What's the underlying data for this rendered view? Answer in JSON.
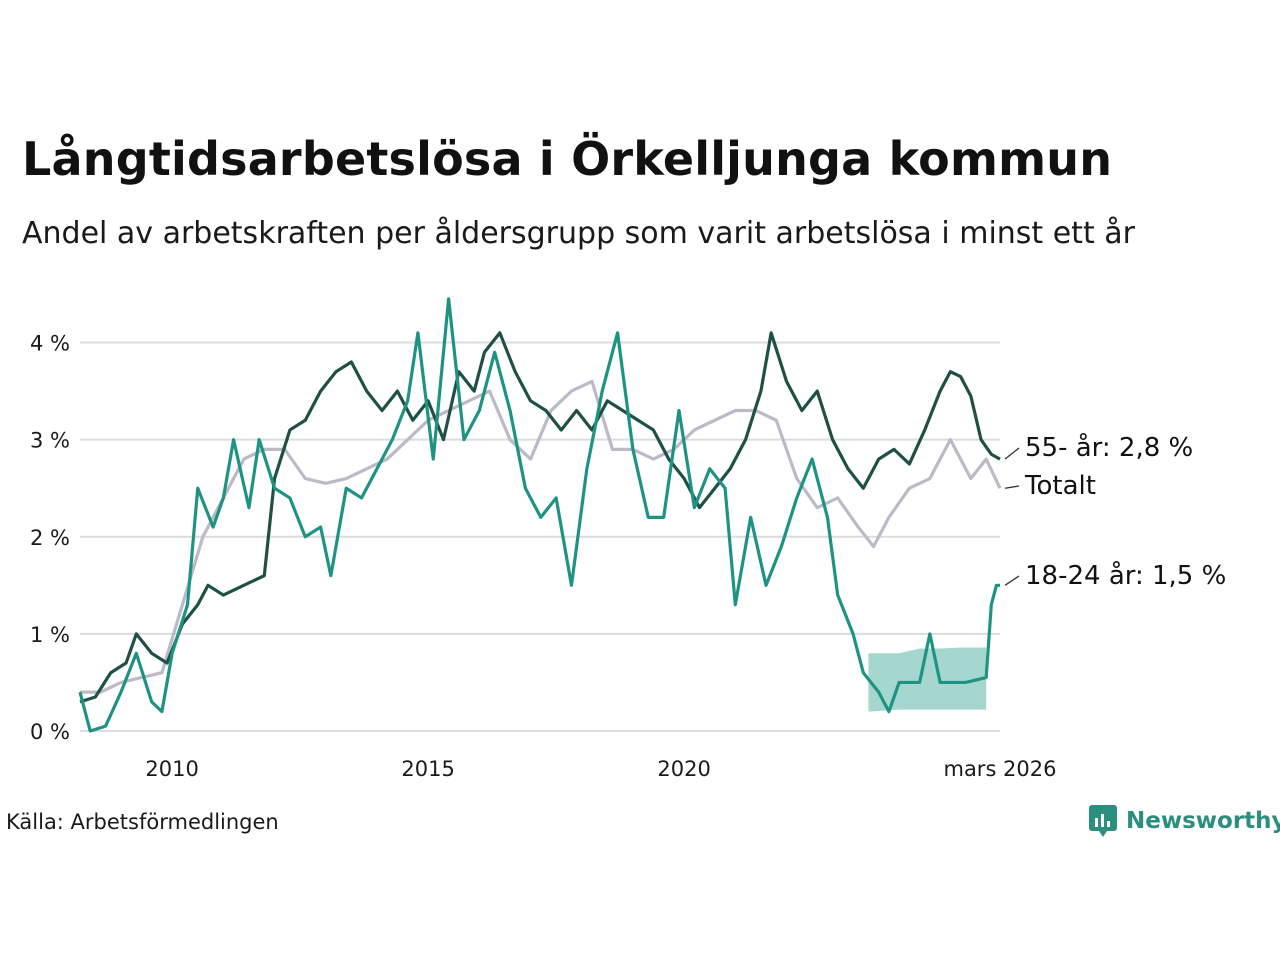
{
  "title": "Långtidsarbetslösa i Örkelljunga kommun",
  "subtitle": "Andel av arbetskraften per åldersgrupp som varit arbetslösa i minst ett år",
  "source": "Källa: Arbetsförmedlingen",
  "brand": "Newsworthy",
  "colors": {
    "older": "#1e5045",
    "young": "#1f9383",
    "total": "#bdb9c8",
    "band": "#a6d7cf",
    "grid": "#dcdcdc"
  },
  "chart_data": {
    "type": "line",
    "title": "Långtidsarbetslösa i Örkelljunga kommun",
    "xlabel": "",
    "ylabel": "",
    "xlim": [
      2008.2,
      2026.17
    ],
    "ylim": [
      0,
      4.5
    ],
    "y_ticks": [
      0,
      1,
      2,
      3,
      4
    ],
    "y_tick_labels": [
      "0 %",
      "1 %",
      "2 %",
      "3 %",
      "4 %"
    ],
    "x_ticks": [
      2010,
      2015,
      2020,
      2026.17
    ],
    "x_tick_labels": [
      "2010",
      "2015",
      "2020",
      "mars 2026"
    ],
    "series": [
      {
        "name": "Totalt",
        "key": "total",
        "end_label": "Totalt",
        "points": [
          [
            2008.2,
            0.4
          ],
          [
            2008.6,
            0.4
          ],
          [
            2009.0,
            0.5
          ],
          [
            2009.4,
            0.55
          ],
          [
            2009.8,
            0.6
          ],
          [
            2010.2,
            1.3
          ],
          [
            2010.6,
            2.0
          ],
          [
            2011.0,
            2.4
          ],
          [
            2011.4,
            2.8
          ],
          [
            2011.8,
            2.9
          ],
          [
            2012.2,
            2.9
          ],
          [
            2012.6,
            2.6
          ],
          [
            2013.0,
            2.55
          ],
          [
            2013.4,
            2.6
          ],
          [
            2013.8,
            2.7
          ],
          [
            2014.2,
            2.8
          ],
          [
            2014.6,
            3.0
          ],
          [
            2015.0,
            3.2
          ],
          [
            2015.4,
            3.3
          ],
          [
            2015.8,
            3.4
          ],
          [
            2016.2,
            3.5
          ],
          [
            2016.6,
            3.0
          ],
          [
            2017.0,
            2.8
          ],
          [
            2017.4,
            3.3
          ],
          [
            2017.8,
            3.5
          ],
          [
            2018.2,
            3.6
          ],
          [
            2018.6,
            2.9
          ],
          [
            2019.0,
            2.9
          ],
          [
            2019.4,
            2.8
          ],
          [
            2019.8,
            2.9
          ],
          [
            2020.2,
            3.1
          ],
          [
            2020.6,
            3.2
          ],
          [
            2021.0,
            3.3
          ],
          [
            2021.4,
            3.3
          ],
          [
            2021.8,
            3.2
          ],
          [
            2022.2,
            2.6
          ],
          [
            2022.6,
            2.3
          ],
          [
            2023.0,
            2.4
          ],
          [
            2023.4,
            2.1
          ],
          [
            2023.7,
            1.9
          ],
          [
            2024.0,
            2.2
          ],
          [
            2024.4,
            2.5
          ],
          [
            2024.8,
            2.6
          ],
          [
            2025.2,
            3.0
          ],
          [
            2025.6,
            2.6
          ],
          [
            2025.9,
            2.8
          ],
          [
            2026.17,
            2.5
          ]
        ]
      },
      {
        "name": "55- år",
        "key": "older",
        "end_label": "55- år: 2,8 %",
        "points": [
          [
            2008.2,
            0.3
          ],
          [
            2008.5,
            0.35
          ],
          [
            2008.8,
            0.6
          ],
          [
            2009.1,
            0.7
          ],
          [
            2009.3,
            1.0
          ],
          [
            2009.6,
            0.8
          ],
          [
            2009.9,
            0.7
          ],
          [
            2010.2,
            1.1
          ],
          [
            2010.5,
            1.3
          ],
          [
            2010.7,
            1.5
          ],
          [
            2011.0,
            1.4
          ],
          [
            2011.4,
            1.5
          ],
          [
            2011.8,
            1.6
          ],
          [
            2012.0,
            2.6
          ],
          [
            2012.3,
            3.1
          ],
          [
            2012.6,
            3.2
          ],
          [
            2012.9,
            3.5
          ],
          [
            2013.2,
            3.7
          ],
          [
            2013.5,
            3.8
          ],
          [
            2013.8,
            3.5
          ],
          [
            2014.1,
            3.3
          ],
          [
            2014.4,
            3.5
          ],
          [
            2014.7,
            3.2
          ],
          [
            2015.0,
            3.4
          ],
          [
            2015.3,
            3.0
          ],
          [
            2015.6,
            3.7
          ],
          [
            2015.9,
            3.5
          ],
          [
            2016.1,
            3.9
          ],
          [
            2016.4,
            4.1
          ],
          [
            2016.7,
            3.7
          ],
          [
            2017.0,
            3.4
          ],
          [
            2017.3,
            3.3
          ],
          [
            2017.6,
            3.1
          ],
          [
            2017.9,
            3.3
          ],
          [
            2018.2,
            3.1
          ],
          [
            2018.5,
            3.4
          ],
          [
            2018.8,
            3.3
          ],
          [
            2019.1,
            3.2
          ],
          [
            2019.4,
            3.1
          ],
          [
            2019.7,
            2.8
          ],
          [
            2020.0,
            2.6
          ],
          [
            2020.3,
            2.3
          ],
          [
            2020.6,
            2.5
          ],
          [
            2020.9,
            2.7
          ],
          [
            2021.2,
            3.0
          ],
          [
            2021.5,
            3.5
          ],
          [
            2021.7,
            4.1
          ],
          [
            2022.0,
            3.6
          ],
          [
            2022.3,
            3.3
          ],
          [
            2022.6,
            3.5
          ],
          [
            2022.9,
            3.0
          ],
          [
            2023.2,
            2.7
          ],
          [
            2023.5,
            2.5
          ],
          [
            2023.8,
            2.8
          ],
          [
            2024.1,
            2.9
          ],
          [
            2024.4,
            2.75
          ],
          [
            2024.7,
            3.1
          ],
          [
            2025.0,
            3.5
          ],
          [
            2025.2,
            3.7
          ],
          [
            2025.4,
            3.65
          ],
          [
            2025.6,
            3.45
          ],
          [
            2025.8,
            3.0
          ],
          [
            2026.0,
            2.85
          ],
          [
            2026.17,
            2.8
          ]
        ]
      },
      {
        "name": "18-24 år",
        "key": "young",
        "end_label": "18-24 år: 1,5 %",
        "points": [
          [
            2008.2,
            0.4
          ],
          [
            2008.4,
            0.0
          ],
          [
            2008.7,
            0.05
          ],
          [
            2009.0,
            0.4
          ],
          [
            2009.3,
            0.8
          ],
          [
            2009.6,
            0.3
          ],
          [
            2009.8,
            0.2
          ],
          [
            2010.0,
            0.8
          ],
          [
            2010.3,
            1.3
          ],
          [
            2010.5,
            2.5
          ],
          [
            2010.8,
            2.1
          ],
          [
            2011.0,
            2.4
          ],
          [
            2011.2,
            3.0
          ],
          [
            2011.5,
            2.3
          ],
          [
            2011.7,
            3.0
          ],
          [
            2012.0,
            2.5
          ],
          [
            2012.3,
            2.4
          ],
          [
            2012.6,
            2.0
          ],
          [
            2012.9,
            2.1
          ],
          [
            2013.1,
            1.6
          ],
          [
            2013.4,
            2.5
          ],
          [
            2013.7,
            2.4
          ],
          [
            2014.0,
            2.7
          ],
          [
            2014.3,
            3.0
          ],
          [
            2014.6,
            3.4
          ],
          [
            2014.8,
            4.1
          ],
          [
            2015.1,
            2.8
          ],
          [
            2015.4,
            4.45
          ],
          [
            2015.7,
            3.0
          ],
          [
            2016.0,
            3.3
          ],
          [
            2016.3,
            3.9
          ],
          [
            2016.6,
            3.3
          ],
          [
            2016.9,
            2.5
          ],
          [
            2017.2,
            2.2
          ],
          [
            2017.5,
            2.4
          ],
          [
            2017.8,
            1.5
          ],
          [
            2018.1,
            2.7
          ],
          [
            2018.4,
            3.5
          ],
          [
            2018.7,
            4.1
          ],
          [
            2019.0,
            2.9
          ],
          [
            2019.3,
            2.2
          ],
          [
            2019.6,
            2.2
          ],
          [
            2019.9,
            3.3
          ],
          [
            2020.2,
            2.3
          ],
          [
            2020.5,
            2.7
          ],
          [
            2020.8,
            2.5
          ],
          [
            2021.0,
            1.3
          ],
          [
            2021.3,
            2.2
          ],
          [
            2021.6,
            1.5
          ],
          [
            2021.9,
            1.9
          ],
          [
            2022.2,
            2.4
          ],
          [
            2022.5,
            2.8
          ],
          [
            2022.8,
            2.2
          ],
          [
            2023.0,
            1.4
          ],
          [
            2023.3,
            1.0
          ],
          [
            2023.5,
            0.6
          ],
          [
            2023.8,
            0.4
          ],
          [
            2024.0,
            0.2
          ],
          [
            2024.2,
            0.5
          ],
          [
            2024.6,
            0.5
          ],
          [
            2024.8,
            1.0
          ],
          [
            2025.0,
            0.5
          ],
          [
            2025.5,
            0.5
          ],
          [
            2025.9,
            0.55
          ],
          [
            2026.0,
            1.3
          ],
          [
            2026.1,
            1.5
          ],
          [
            2026.17,
            1.5
          ]
        ]
      }
    ],
    "uncertainty_band": {
      "series": "young",
      "x": [
        2023.6,
        2024.2,
        2024.6,
        2024.8,
        2025.0,
        2025.4,
        2025.9
      ],
      "upper": [
        0.8,
        0.8,
        0.85,
        0.85,
        0.85,
        0.86,
        0.86
      ],
      "lower": [
        0.2,
        0.22,
        0.22,
        0.22,
        0.22,
        0.22,
        0.22
      ]
    }
  }
}
